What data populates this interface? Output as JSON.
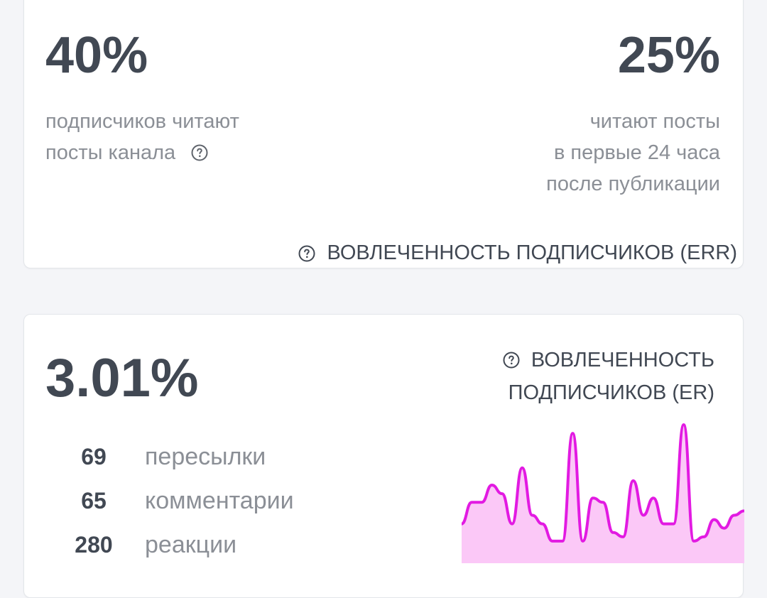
{
  "err_card": {
    "left_value": "40%",
    "left_desc": [
      "подписчиков читают",
      "посты канала"
    ],
    "right_value": "25%",
    "right_desc": [
      "читают посты",
      "в первые 24 часа",
      "после публикации"
    ],
    "link_label": "ВОВЛЕЧЕННОСТЬ ПОДПИСЧИКОВ (ERR)"
  },
  "er_card": {
    "value": "3.01%",
    "link_lines": [
      "ВОВЛЕЧЕННОСТЬ",
      "ПОДПИСЧИКОВ (ER)"
    ],
    "stats": [
      {
        "num": "69",
        "label": "пересылки"
      },
      {
        "num": "65",
        "label": "комментарии"
      },
      {
        "num": "280",
        "label": "реакции"
      }
    ]
  },
  "icons": {
    "help": "question-circle-icon"
  },
  "colors": {
    "text": "#414853",
    "muted": "#8b8f96",
    "spark_line": "#e21ae2",
    "spark_fill": "#fbc8f7"
  },
  "chart_data": {
    "type": "area",
    "values": [
      10,
      20,
      20,
      28,
      24,
      10,
      36,
      14,
      10,
      2,
      2,
      52,
      2,
      22,
      20,
      6,
      4,
      30,
      14,
      22,
      10,
      10,
      56,
      2,
      4,
      12,
      8,
      14,
      16
    ]
  }
}
